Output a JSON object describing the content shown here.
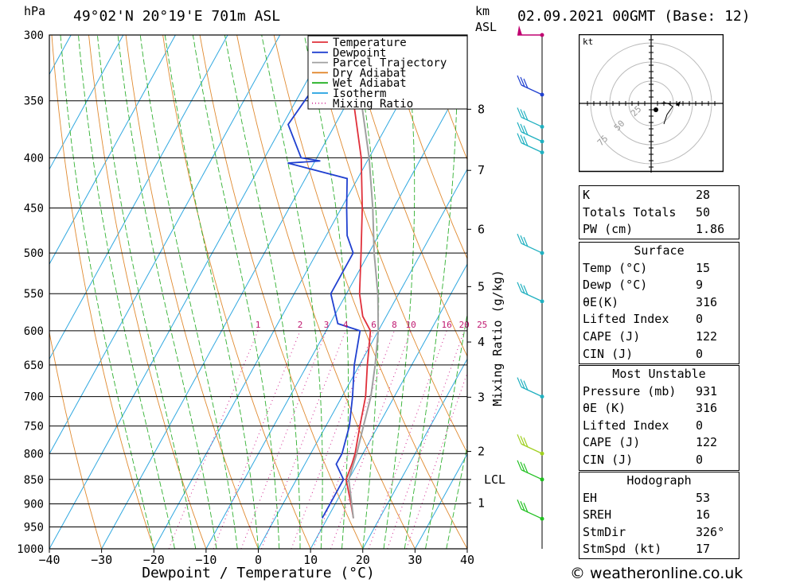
{
  "header": {
    "location": "49°02'N  20°19'E  701m  ASL",
    "date": "02.09.2021  00GMT  (Base: 12)",
    "hpa_label": "hPa",
    "km_label": "km",
    "asl_label": "ASL"
  },
  "chart_data": {
    "type": "line",
    "title": "49°02'N  20°19'E  701m  ASL",
    "xlabel": "Dewpoint / Temperature (°C)",
    "ylabel": "hPa",
    "mixing_ratio_label": "Mixing Ratio (g/kg)",
    "xlim": [
      -40,
      40
    ],
    "ylim": [
      1000,
      300
    ],
    "x_ticks": [
      -40,
      -30,
      -20,
      -10,
      0,
      10,
      20,
      30,
      40
    ],
    "y_ticks": [
      300,
      350,
      400,
      450,
      500,
      550,
      600,
      650,
      700,
      750,
      800,
      850,
      900,
      950,
      1000
    ],
    "km_ticks": [
      {
        "label": "8",
        "p": 357
      },
      {
        "label": "7",
        "p": 412
      },
      {
        "label": "6",
        "p": 473
      },
      {
        "label": "5",
        "p": 541
      },
      {
        "label": "4",
        "p": 616
      },
      {
        "label": "3",
        "p": 701
      },
      {
        "label": "2",
        "p": 796
      },
      {
        "label": "LCL",
        "p": 850
      },
      {
        "label": "1",
        "p": 898
      }
    ],
    "mixing_ratio_values": [
      1,
      2,
      3,
      4,
      6,
      8,
      10,
      16,
      20,
      25
    ],
    "legend": [
      {
        "name": "Temperature",
        "color": "#e0303a",
        "style": "solid"
      },
      {
        "name": "Dewpoint",
        "color": "#2040d0",
        "style": "solid"
      },
      {
        "name": "Parcel Trajectory",
        "color": "#a0a0a0",
        "style": "solid"
      },
      {
        "name": "Dry Adiabat",
        "color": "#e08020",
        "style": "solid"
      },
      {
        "name": "Wet Adiabat",
        "color": "#20b020",
        "style": "solid"
      },
      {
        "name": "Isotherm",
        "color": "#20a0e0",
        "style": "solid"
      },
      {
        "name": "Mixing Ratio",
        "color": "#d02090",
        "style": "dotted"
      }
    ],
    "series": [
      {
        "name": "Temperature",
        "points": [
          [
            931,
            15.0
          ],
          [
            900,
            13.0
          ],
          [
            850,
            9.5
          ],
          [
            820,
            9.0
          ],
          [
            800,
            8.5
          ],
          [
            750,
            6.5
          ],
          [
            700,
            4.5
          ],
          [
            650,
            1.5
          ],
          [
            600,
            -1.5
          ],
          [
            580,
            -4.5
          ],
          [
            550,
            -7.5
          ],
          [
            500,
            -11.5
          ],
          [
            450,
            -16.0
          ],
          [
            400,
            -21.5
          ],
          [
            350,
            -29.0
          ],
          [
            300,
            -37.0
          ]
        ]
      },
      {
        "name": "Dewpoint",
        "points": [
          [
            931,
            9.0
          ],
          [
            900,
            9.0
          ],
          [
            850,
            9.0
          ],
          [
            820,
            6.0
          ],
          [
            800,
            6.0
          ],
          [
            750,
            4.5
          ],
          [
            700,
            2.0
          ],
          [
            650,
            -1.0
          ],
          [
            600,
            -3.5
          ],
          [
            590,
            -8.5
          ],
          [
            550,
            -13.0
          ],
          [
            500,
            -13.0
          ],
          [
            480,
            -16.0
          ],
          [
            450,
            -19.0
          ],
          [
            420,
            -22.0
          ],
          [
            405,
            -35.0
          ],
          [
            403,
            -29.0
          ],
          [
            400,
            -33.0
          ],
          [
            370,
            -39.0
          ],
          [
            340,
            -38.0
          ],
          [
            330,
            -33.0
          ],
          [
            300,
            -38.0
          ]
        ]
      },
      {
        "name": "Parcel Trajectory",
        "points": [
          [
            931,
            15.0
          ],
          [
            850,
            10.0
          ],
          [
            800,
            8.8
          ],
          [
            750,
            7.2
          ],
          [
            700,
            5.5
          ],
          [
            650,
            3.0
          ],
          [
            600,
            0.0
          ],
          [
            550,
            -4.0
          ],
          [
            500,
            -9.0
          ],
          [
            450,
            -14.0
          ],
          [
            400,
            -20.0
          ],
          [
            350,
            -27.5
          ],
          [
            300,
            -36.0
          ]
        ]
      }
    ]
  },
  "wind_profile": {
    "barbs": [
      {
        "p": 300,
        "color": "#c00070",
        "kind": "flag"
      },
      {
        "p": 345,
        "color": "#2040d0",
        "kind": "barbs"
      },
      {
        "p": 372,
        "color": "#20b0c0",
        "kind": "barbs"
      },
      {
        "p": 385,
        "color": "#20b0c0",
        "kind": "barbs"
      },
      {
        "p": 395,
        "color": "#20b0c0",
        "kind": "barbs"
      },
      {
        "p": 500,
        "color": "#20b0c0",
        "kind": "barbs"
      },
      {
        "p": 560,
        "color": "#20b0c0",
        "kind": "barbs"
      },
      {
        "p": 700,
        "color": "#20b0c0",
        "kind": "barbs"
      },
      {
        "p": 800,
        "color": "#a0d020",
        "kind": "barbs"
      },
      {
        "p": 850,
        "color": "#20c020",
        "kind": "barbs"
      },
      {
        "p": 932,
        "color": "#20c020",
        "kind": "barbs"
      }
    ]
  },
  "hodograph": {
    "unit_label": "kt",
    "ring_labels": [
      "25",
      "50",
      "75"
    ]
  },
  "indices": {
    "general": [
      {
        "label": "K",
        "value": "28"
      },
      {
        "label": "Totals Totals",
        "value": "50"
      },
      {
        "label": "PW (cm)",
        "value": "1.86"
      }
    ],
    "surface": {
      "title": "Surface",
      "rows": [
        {
          "label": "Temp (°C)",
          "value": "15"
        },
        {
          "label": "Dewp (°C)",
          "value": "9"
        },
        {
          "label": "θE(K)",
          "value": "316"
        },
        {
          "label": "Lifted Index",
          "value": "0"
        },
        {
          "label": "CAPE (J)",
          "value": "122"
        },
        {
          "label": "CIN (J)",
          "value": "0"
        }
      ]
    },
    "most_unstable": {
      "title": "Most Unstable",
      "rows": [
        {
          "label": "Pressure (mb)",
          "value": "931"
        },
        {
          "label": "θE (K)",
          "value": "316"
        },
        {
          "label": "Lifted Index",
          "value": "0"
        },
        {
          "label": "CAPE (J)",
          "value": "122"
        },
        {
          "label": "CIN (J)",
          "value": "0"
        }
      ]
    },
    "hodograph": {
      "title": "Hodograph",
      "rows": [
        {
          "label": "EH",
          "value": "53"
        },
        {
          "label": "SREH",
          "value": "16"
        },
        {
          "label": "StmDir",
          "value": "326°"
        },
        {
          "label": "StmSpd (kt)",
          "value": "17"
        }
      ]
    }
  },
  "footer": {
    "copyright": "© weatheronline.co.uk"
  }
}
